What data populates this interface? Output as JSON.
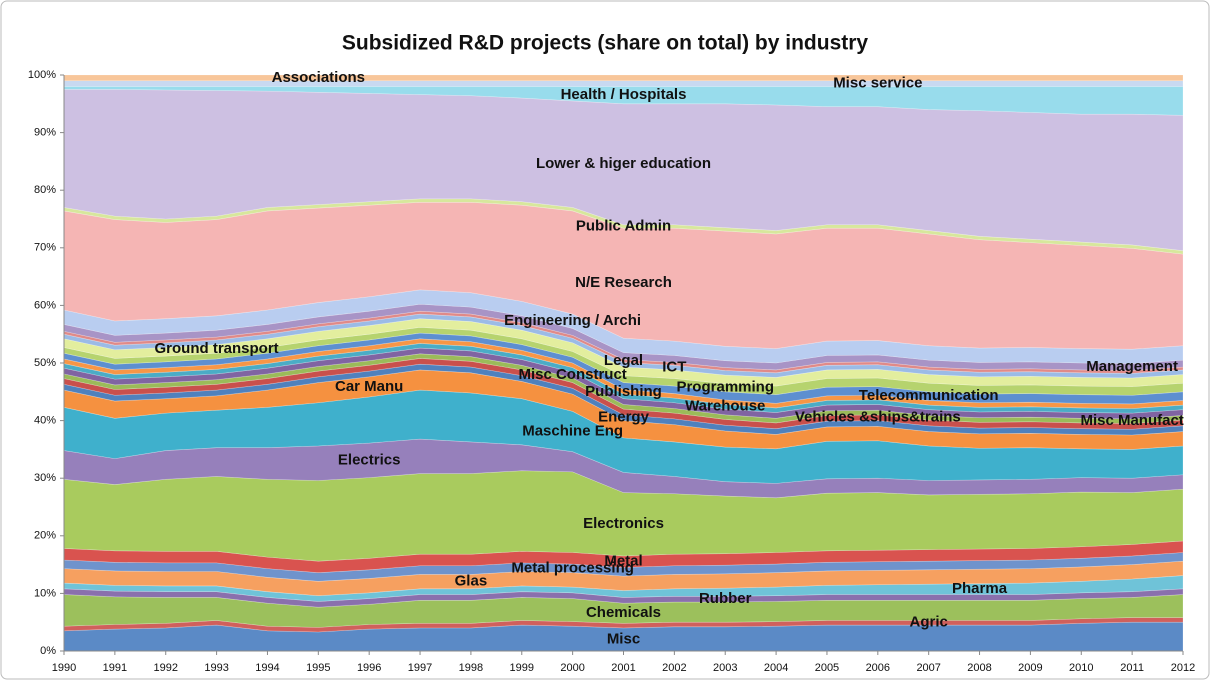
{
  "chart_data": {
    "type": "stacked_area",
    "title": "Subsidized R&D projects (share on total) by industry",
    "categories": [
      "1990",
      "1991",
      "1992",
      "1993",
      "1994",
      "1995",
      "1996",
      "1997",
      "1998",
      "1999",
      "2000",
      "2001",
      "2002",
      "2003",
      "2004",
      "2005",
      "2006",
      "2007",
      "2008",
      "2009",
      "2010",
      "2011",
      "2012"
    ],
    "ylim": [
      0,
      100
    ],
    "yticks": [
      {
        "value": 0,
        "label": "0%"
      },
      {
        "value": 10,
        "label": "10%"
      },
      {
        "value": 20,
        "label": "20%"
      },
      {
        "value": 30,
        "label": "30%"
      },
      {
        "value": 40,
        "label": "40%"
      },
      {
        "value": 50,
        "label": "50%"
      },
      {
        "value": 60,
        "label": "60%"
      },
      {
        "value": 70,
        "label": "70%"
      },
      {
        "value": 80,
        "label": "80%"
      },
      {
        "value": 90,
        "label": "90%"
      },
      {
        "value": 100,
        "label": "100%"
      }
    ],
    "grid": false,
    "series": [
      {
        "name": "Misc",
        "color": "#5b8ac6",
        "values": [
          3.5,
          3.8,
          4,
          4.5,
          3.5,
          3.3,
          3.8,
          4,
          4,
          4.5,
          4.3,
          4,
          4.2,
          4.2,
          4.3,
          4.5,
          4.5,
          4.5,
          4.5,
          4.5,
          4.8,
          5,
          5
        ]
      },
      {
        "name": "Agric",
        "color": "#d0605c",
        "values": [
          0.8,
          0.8,
          0.8,
          0.8,
          0.8,
          0.8,
          0.8,
          0.8,
          0.8,
          0.8,
          0.8,
          0.8,
          0.8,
          0.8,
          0.8,
          0.8,
          0.8,
          0.8,
          0.8,
          0.8,
          0.8,
          0.8,
          0.8
        ]
      },
      {
        "name": "Chemicals",
        "color": "#9cc05c",
        "values": [
          5.5,
          4.8,
          4.5,
          4,
          4,
          3.5,
          3.5,
          4,
          4,
          4,
          4,
          3.5,
          3.5,
          3.5,
          3.5,
          3.5,
          3.5,
          3.5,
          3.5,
          3.5,
          3.5,
          3.5,
          4
        ]
      },
      {
        "name": "Rubber",
        "color": "#8a70ad",
        "values": [
          1,
          1,
          1,
          1,
          1,
          1,
          1,
          1,
          1,
          1,
          1,
          1,
          1,
          1,
          1,
          1,
          1,
          1,
          1,
          1,
          1,
          1,
          1
        ]
      },
      {
        "name": "Pharma",
        "color": "#6fc3d8",
        "values": [
          1,
          1,
          1,
          1,
          1,
          1,
          1,
          1,
          1,
          1,
          1,
          1.2,
          1.3,
          1.4,
          1.5,
          1.6,
          1.7,
          1.8,
          1.9,
          2,
          2,
          2.2,
          2.3
        ]
      },
      {
        "name": "Glas",
        "color": "#f6a060",
        "values": [
          2.5,
          2.5,
          2.5,
          2.5,
          2.5,
          2.5,
          2.5,
          2.5,
          2.5,
          2.5,
          2.5,
          2.5,
          2.5,
          2.5,
          2.5,
          2.5,
          2.5,
          2.5,
          2.5,
          2.5,
          2.5,
          2.5,
          2.5
        ]
      },
      {
        "name": "Metal processing",
        "color": "#6f93cc",
        "values": [
          1.5,
          1.5,
          1.5,
          1.5,
          1.5,
          1.5,
          1.5,
          1.5,
          1.5,
          1.5,
          1.5,
          1.5,
          1.5,
          1.5,
          1.5,
          1.5,
          1.5,
          1.5,
          1.5,
          1.5,
          1.5,
          1.5,
          1.5
        ]
      },
      {
        "name": "Metal",
        "color": "#d9534f",
        "values": [
          2,
          2,
          2,
          2,
          2,
          2,
          2,
          2,
          2,
          2,
          2,
          2,
          2,
          2,
          2,
          2,
          2,
          2,
          2,
          2,
          2,
          2,
          2
        ]
      },
      {
        "name": "Electronics",
        "color": "#a9cb5e",
        "values": [
          12,
          11.5,
          12.5,
          13,
          13.5,
          14,
          14,
          14,
          14,
          14,
          14,
          11,
          10.5,
          10,
          9.5,
          10,
          10,
          9.5,
          9.5,
          9.5,
          9.5,
          9,
          9
        ]
      },
      {
        "name": "Electrics",
        "color": "#9680bb",
        "values": [
          5,
          4.5,
          5,
          5,
          5.5,
          6,
          6,
          6,
          5.5,
          4.5,
          3.5,
          3.5,
          3,
          2.5,
          2.5,
          2.5,
          2.5,
          2.5,
          2.5,
          2.5,
          2.5,
          2.5,
          2.5
        ]
      },
      {
        "name": "Maschine Eng",
        "color": "#3fb0cc",
        "values": [
          7.5,
          7,
          6.5,
          6.5,
          7,
          7.5,
          8,
          8.5,
          8.5,
          8,
          7,
          6,
          6,
          6,
          6,
          6.5,
          6.5,
          6,
          5.5,
          5.5,
          5,
          5,
          5
        ]
      },
      {
        "name": "Car Manu",
        "color": "#f59140",
        "values": [
          3,
          3,
          2.5,
          2.5,
          3,
          3.5,
          3.5,
          3.5,
          3.5,
          3,
          3,
          3,
          3,
          2.8,
          2.5,
          2.5,
          2.5,
          2.5,
          2.5,
          2.5,
          2.5,
          2.5,
          2.5
        ]
      },
      {
        "name": "Energy",
        "color": "#4f81bd",
        "values": [
          1,
          1,
          1,
          1,
          1,
          1,
          1,
          1,
          1,
          1,
          1,
          1,
          1,
          1,
          1,
          1,
          1,
          1,
          1,
          1,
          1,
          1,
          1
        ]
      },
      {
        "name": "Vehicles &ships&trains",
        "color": "#c9504c",
        "values": [
          1,
          1,
          1,
          1,
          1,
          1,
          1,
          1,
          1,
          1,
          1,
          1,
          1,
          1,
          1,
          1,
          1,
          1,
          1,
          1,
          1,
          1,
          1
        ]
      },
      {
        "name": "Misc Manufact",
        "color": "#9bbb59",
        "values": [
          0.8,
          0.8,
          0.8,
          0.8,
          0.8,
          0.8,
          0.8,
          0.8,
          0.8,
          0.8,
          0.8,
          0.8,
          0.8,
          0.8,
          0.8,
          0.8,
          0.8,
          0.8,
          0.8,
          0.8,
          0.8,
          0.8,
          0.8
        ]
      },
      {
        "name": "Misc Construct",
        "color": "#8064a2",
        "values": [
          1,
          1,
          1,
          1,
          1,
          1,
          1,
          1,
          1,
          1,
          1,
          1,
          1,
          1,
          1,
          1,
          1,
          1,
          1,
          1,
          1,
          1,
          1
        ]
      },
      {
        "name": "Warehouse",
        "color": "#4bacc6",
        "values": [
          0.8,
          0.8,
          0.8,
          0.8,
          0.8,
          0.8,
          0.8,
          0.8,
          0.8,
          0.8,
          0.8,
          0.8,
          0.8,
          0.8,
          0.8,
          0.8,
          0.8,
          0.8,
          0.8,
          0.8,
          0.8,
          0.8,
          0.8
        ]
      },
      {
        "name": "Publishing",
        "color": "#f79646",
        "values": [
          0.8,
          0.8,
          0.8,
          0.8,
          0.8,
          0.8,
          0.8,
          0.8,
          0.8,
          0.8,
          0.8,
          0.8,
          0.8,
          0.8,
          0.8,
          0.8,
          0.8,
          0.8,
          0.8,
          0.8,
          0.8,
          0.8,
          0.8
        ]
      },
      {
        "name": "Telecommunication",
        "color": "#5d8fd0",
        "values": [
          1,
          1,
          1,
          1,
          1,
          1,
          1,
          1,
          1,
          1,
          1,
          1.2,
          1.3,
          1.4,
          1.5,
          1.5,
          1.5,
          1.5,
          1.5,
          1.5,
          1.5,
          1.5,
          1.5
        ]
      },
      {
        "name": "Programming",
        "color": "#b6d36e",
        "values": [
          1,
          1,
          1,
          1,
          1,
          1,
          1,
          1,
          1,
          1,
          1,
          1.2,
          1.3,
          1.4,
          1.5,
          1.5,
          1.5,
          1.5,
          1.5,
          1.5,
          1.5,
          1.5,
          1.5
        ]
      },
      {
        "name": "Ground transport",
        "color": "#e3ee9e",
        "values": [
          1.5,
          1.5,
          1.5,
          1.5,
          1.5,
          1.5,
          1.5,
          1.5,
          1.5,
          1.5,
          1.5,
          1.5,
          1.5,
          1.5,
          1.5,
          1.5,
          1.5,
          1.5,
          1.5,
          1.5,
          1.5,
          1.5,
          1.5
        ]
      },
      {
        "name": "ICT",
        "color": "#9bbbe6",
        "values": [
          0.8,
          0.8,
          0.8,
          0.8,
          0.8,
          0.8,
          0.8,
          0.8,
          0.8,
          0.8,
          0.8,
          0.8,
          0.8,
          0.8,
          0.8,
          0.8,
          0.8,
          0.8,
          0.8,
          0.8,
          0.8,
          0.8,
          0.8
        ]
      },
      {
        "name": "Legal",
        "color": "#e08a88",
        "values": [
          0.5,
          0.5,
          0.5,
          0.5,
          0.5,
          0.5,
          0.5,
          0.5,
          0.5,
          0.5,
          0.5,
          0.5,
          0.5,
          0.5,
          0.5,
          0.5,
          0.5,
          0.5,
          0.5,
          0.5,
          0.5,
          0.5,
          0.5
        ]
      },
      {
        "name": "Management",
        "color": "#a894c6",
        "values": [
          1.2,
          1.2,
          1.2,
          1.2,
          1.2,
          1.2,
          1.2,
          1.2,
          1.2,
          1.2,
          1.2,
          1.2,
          1.2,
          1.2,
          1.2,
          1.2,
          1.2,
          1.2,
          1.2,
          1.2,
          1.2,
          1.2,
          1.2
        ]
      },
      {
        "name": "Engineering / Archi",
        "color": "#b9cdf0",
        "values": [
          2.5,
          2.5,
          2.5,
          2.5,
          2.5,
          2.5,
          2.5,
          2.5,
          2.5,
          2.5,
          2.5,
          2.5,
          2.5,
          2.5,
          2.5,
          2.5,
          2.5,
          2.5,
          2.5,
          2.5,
          2.5,
          2.5,
          2.5
        ]
      },
      {
        "name": "N/E Research",
        "color": "#f5b5b4",
        "values": [
          17.2,
          17.6,
          16.7,
          16.7,
          17.2,
          16.4,
          15.9,
          15.2,
          15.7,
          16.7,
          17.9,
          19.1,
          19.6,
          20,
          19.9,
          19.6,
          19.5,
          19.4,
          18.8,
          18.2,
          17.9,
          17.5,
          15.9
        ]
      },
      {
        "name": "Public Admin",
        "color": "#d7e79c",
        "values": [
          0.6,
          0.6,
          0.6,
          0.6,
          0.6,
          0.6,
          0.6,
          0.6,
          0.6,
          0.6,
          0.6,
          0.6,
          0.6,
          0.6,
          0.6,
          0.6,
          0.6,
          0.6,
          0.6,
          0.6,
          0.6,
          0.6,
          0.6
        ]
      },
      {
        "name": "Lower & higer education",
        "color": "#cdc0e2",
        "values": [
          20.5,
          22,
          22.4,
          21.8,
          20.2,
          19.5,
          18.8,
          18.1,
          17.9,
          18,
          18.5,
          21,
          21,
          21.5,
          21.8,
          20.5,
          20.5,
          21,
          21.8,
          22,
          22.2,
          22.7,
          23.5
        ]
      },
      {
        "name": "Health / Hospitals",
        "color": "#98dcec",
        "values": [
          0.5,
          0.5,
          0.6,
          0.7,
          0.8,
          1,
          1.2,
          1.4,
          1.6,
          2,
          2.5,
          3,
          3,
          3,
          3.2,
          3.5,
          3.5,
          4,
          4.2,
          4.5,
          4.8,
          4.8,
          5
        ]
      },
      {
        "name": "Misc service",
        "color": "#c8d9f1",
        "values": [
          1,
          1,
          1,
          1,
          1,
          1,
          1,
          1,
          1,
          1,
          1,
          1,
          1,
          1,
          1,
          1,
          1,
          1,
          1,
          1,
          1,
          1,
          1
        ]
      },
      {
        "name": "Associations",
        "color": "#f8c69a",
        "values": [
          1,
          1,
          1,
          1,
          1,
          1,
          1,
          1,
          1,
          1,
          1,
          1,
          1,
          1,
          1,
          1,
          1,
          1,
          1,
          1,
          1,
          1,
          1
        ]
      }
    ]
  }
}
